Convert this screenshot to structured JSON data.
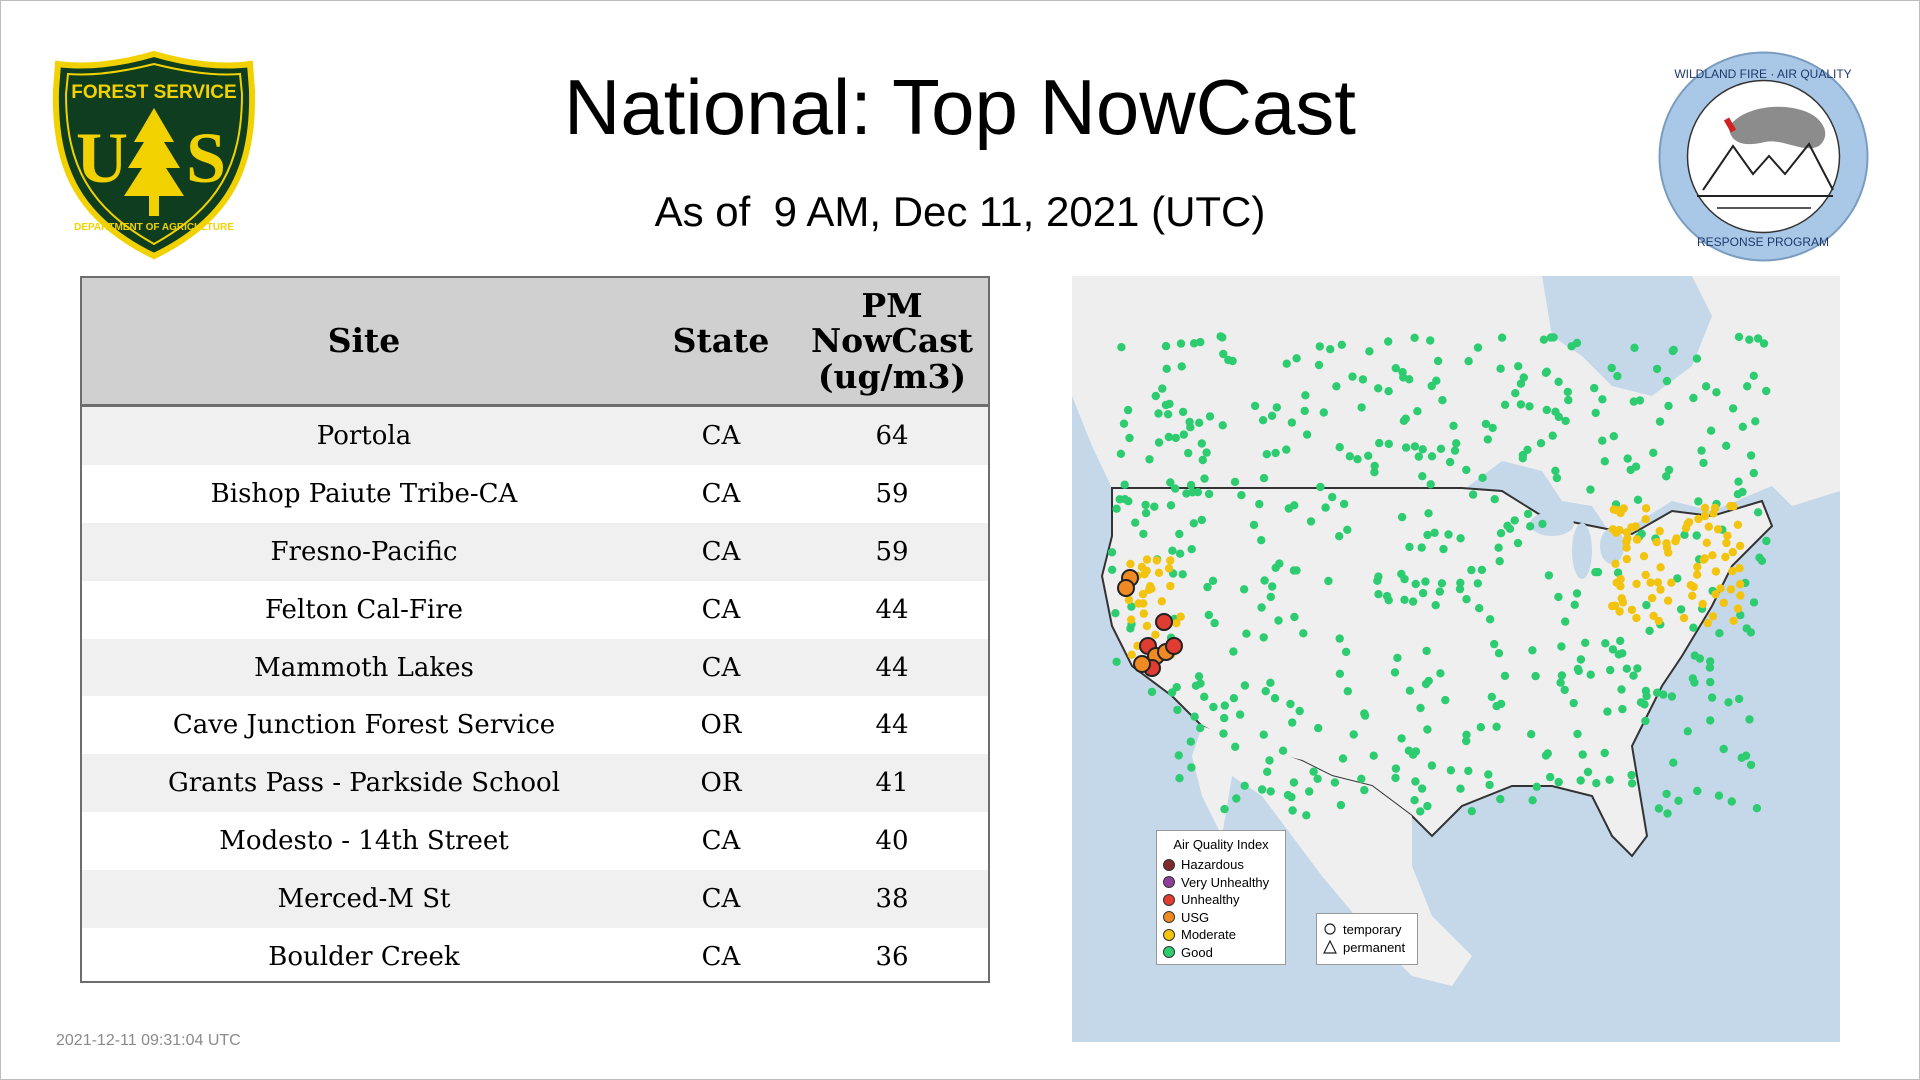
{
  "title": "National: Top NowCast",
  "subtitle": "As of  9 AM, Dec 11, 2021 (UTC)",
  "logos": {
    "forest_service": {
      "top_text": "FOREST SERVICE",
      "center_text": "US",
      "bottom_text": "DEPARTMENT OF AGRICULTURE"
    },
    "wildland_fire": {
      "top_text": "WILDLAND FIRE · AIR QUALITY",
      "bottom_text": "RESPONSE PROGRAM"
    }
  },
  "table": {
    "headers": {
      "site": "Site",
      "state": "State",
      "pm_line1": "PM",
      "pm_line2": "NowCast",
      "pm_line3": "(ug/m3)"
    },
    "rows": [
      {
        "site": "Portola",
        "state": "CA",
        "value": "64"
      },
      {
        "site": "Bishop Paiute Tribe-CA",
        "state": "CA",
        "value": "59"
      },
      {
        "site": "Fresno-Pacific",
        "state": "CA",
        "value": "59"
      },
      {
        "site": "Felton Cal-Fire",
        "state": "CA",
        "value": "44"
      },
      {
        "site": "Mammoth Lakes",
        "state": "CA",
        "value": "44"
      },
      {
        "site": "Cave Junction Forest Service",
        "state": "OR",
        "value": "44"
      },
      {
        "site": "Grants Pass - Parkside School",
        "state": "OR",
        "value": "41"
      },
      {
        "site": "Modesto - 14th Street",
        "state": "CA",
        "value": "40"
      },
      {
        "site": "Merced-M St",
        "state": "CA",
        "value": "38"
      },
      {
        "site": "Boulder Creek",
        "state": "CA",
        "value": "36"
      }
    ]
  },
  "map_legend": {
    "title": "Air Quality Index",
    "items": [
      {
        "label": "Hazardous",
        "color": "#7e2b2b"
      },
      {
        "label": "Very Unhealthy",
        "color": "#8f3f97"
      },
      {
        "label": "Unhealthy",
        "color": "#e03c31"
      },
      {
        "label": "USG",
        "color": "#f08a24"
      },
      {
        "label": "Moderate",
        "color": "#f2c40f"
      },
      {
        "label": "Good",
        "color": "#2ecc71"
      }
    ],
    "shapes": [
      {
        "label": "temporary",
        "icon": "circle-icon"
      },
      {
        "label": "permanent",
        "icon": "triangle-icon"
      }
    ]
  },
  "timestamp": "2021-12-11 09:31:04 UTC"
}
